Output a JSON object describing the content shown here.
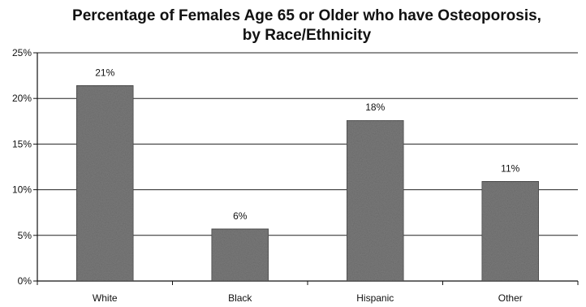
{
  "chart_data": {
    "type": "bar",
    "title": [
      "Percentage of Females Age 65 or Older who have Osteoporosis,",
      "by Race/Ethnicity"
    ],
    "categories": [
      "White",
      "Black",
      "Hispanic",
      "Other"
    ],
    "values": [
      21.4,
      5.7,
      17.6,
      10.9
    ],
    "data_labels": [
      "21%",
      "6%",
      "18%",
      "11%"
    ],
    "y_ticks": [
      0,
      5,
      10,
      15,
      20,
      25
    ],
    "y_tick_labels": [
      "0%",
      "5%",
      "10%",
      "15%",
      "20%",
      "25%"
    ],
    "ylim": [
      0,
      25
    ],
    "xlabel": "",
    "ylabel": "",
    "grid": true,
    "bar_color": "#7a7a7a",
    "grid_color": "#222222"
  }
}
